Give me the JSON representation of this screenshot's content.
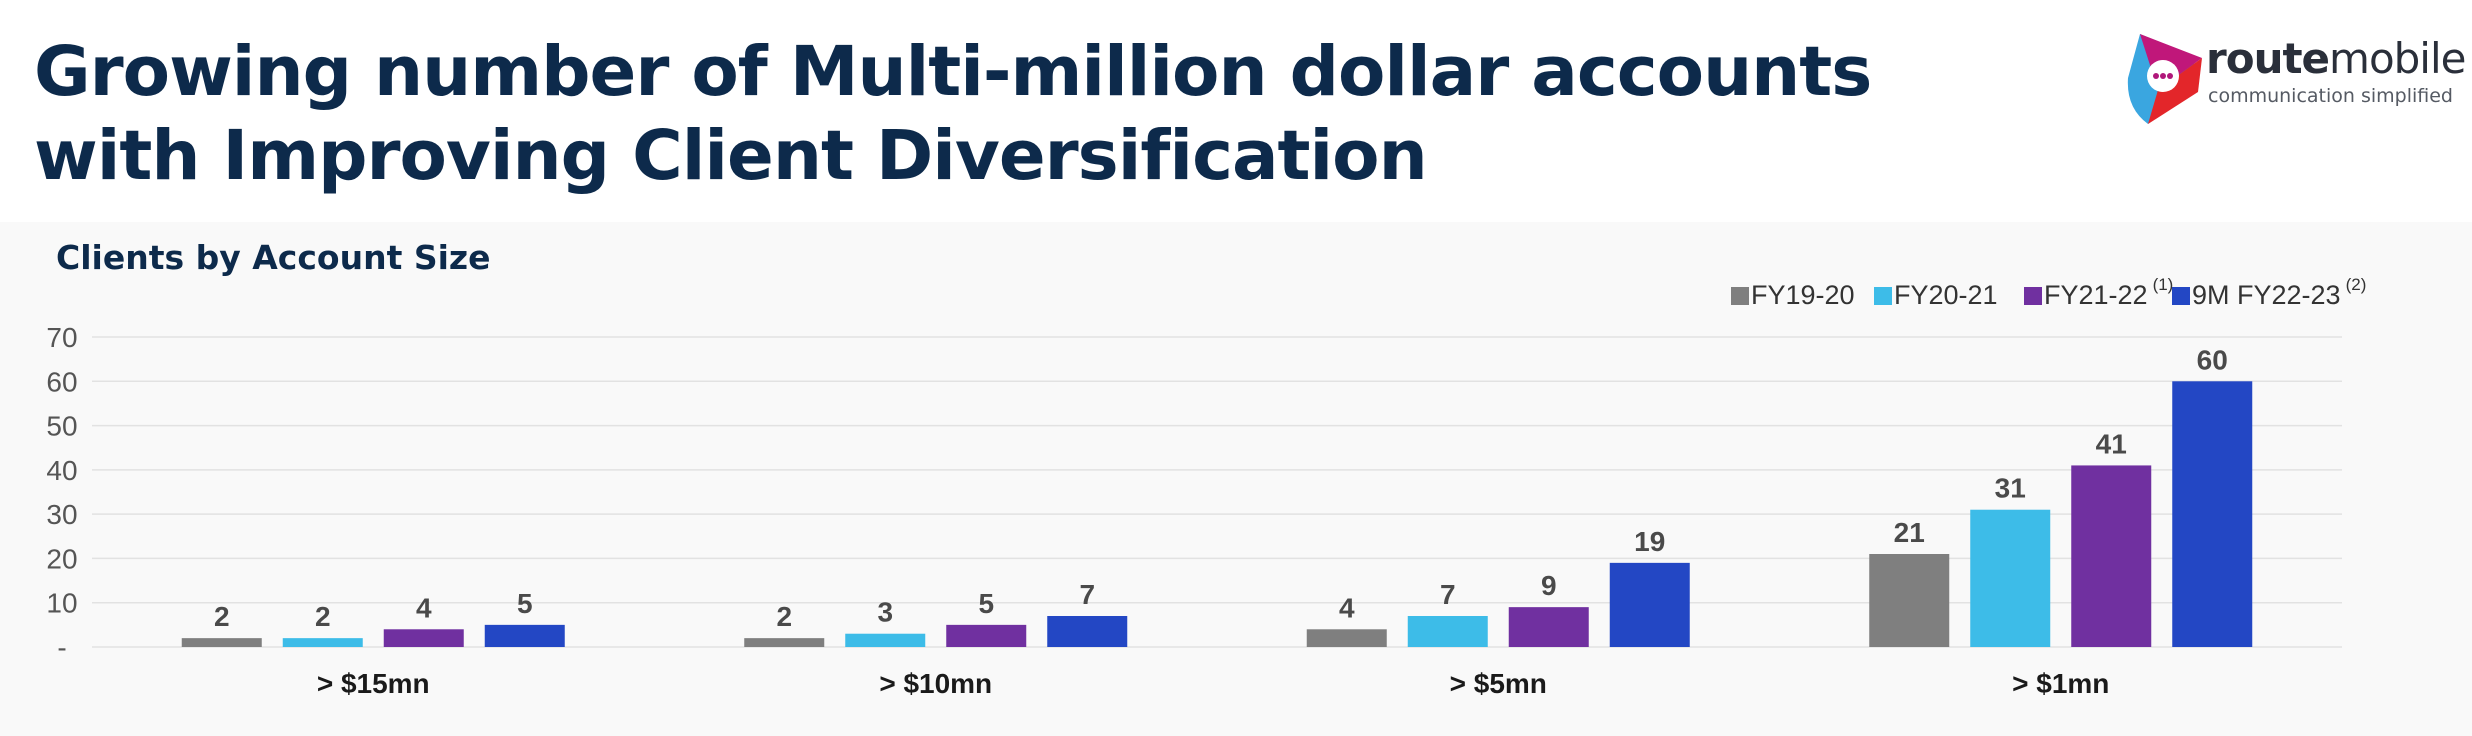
{
  "header": {
    "title_line1": "Growing number of Multi-million dollar accounts",
    "title_line2": "with Improving Client Diversification"
  },
  "logo": {
    "brand_bold": "route",
    "brand_light": "mobile",
    "tagline": "communication simplified"
  },
  "chart_data": {
    "type": "bar",
    "title": "Clients by Account Size",
    "categories": [
      "> $15mn",
      "> $10mn",
      "> $5mn",
      "> $1mn"
    ],
    "series": [
      {
        "name": "FY19-20",
        "sup": "",
        "color": "#7f7f7f",
        "values": [
          2,
          2,
          4,
          21
        ]
      },
      {
        "name": "FY20-21",
        "sup": "",
        "color": "#3dbce8",
        "values": [
          2,
          3,
          7,
          31
        ]
      },
      {
        "name": "FY21-22",
        "sup": "(1)",
        "color": "#7030a0",
        "values": [
          4,
          5,
          9,
          41
        ]
      },
      {
        "name": "9M FY22-23",
        "sup": "(2)",
        "color": "#2347c4",
        "values": [
          5,
          7,
          19,
          60
        ]
      }
    ],
    "yticks": [
      "-",
      "10",
      "20",
      "30",
      "40",
      "50",
      "60",
      "70"
    ],
    "ylim": [
      0,
      70
    ],
    "grid": true,
    "legend": "top-right",
    "xlabel": "",
    "ylabel": ""
  }
}
